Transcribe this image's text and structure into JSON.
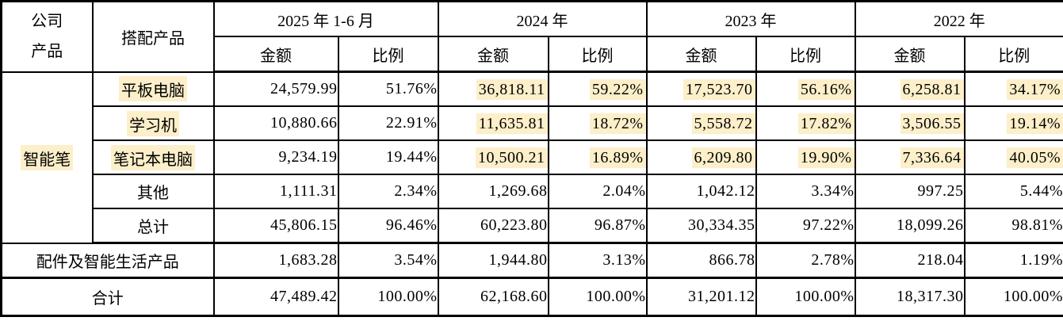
{
  "table": {
    "header": {
      "company_product_lines": [
        "公司",
        "产品"
      ],
      "paired_product": "搭配产品",
      "periods": [
        "2025 年 1-6 月",
        "2024 年",
        "2023 年",
        "2022 年"
      ],
      "amount": "金额",
      "ratio": "比例"
    },
    "company_product_cell": {
      "label": "智能笔",
      "highlight": true,
      "rowspan": 5
    },
    "rows": [
      {
        "label": "平板电脑",
        "label_highlight": true,
        "bold": false,
        "span2": false,
        "values": [
          "24,579.99",
          "51.76%",
          "36,818.11",
          "59.22%",
          "17,523.70",
          "56.16%",
          "6,258.81",
          "34.17%"
        ],
        "highlights": [
          false,
          false,
          true,
          true,
          true,
          true,
          true,
          true
        ]
      },
      {
        "label": "学习机",
        "label_highlight": true,
        "bold": false,
        "span2": false,
        "values": [
          "10,880.66",
          "22.91%",
          "11,635.81",
          "18.72%",
          "5,558.72",
          "17.82%",
          "3,506.55",
          "19.14%"
        ],
        "highlights": [
          false,
          false,
          true,
          true,
          true,
          true,
          true,
          true
        ]
      },
      {
        "label": "笔记本电脑",
        "label_highlight": true,
        "bold": false,
        "span2": false,
        "values": [
          "9,234.19",
          "19.44%",
          "10,500.21",
          "16.89%",
          "6,209.80",
          "19.90%",
          "7,336.64",
          "40.05%"
        ],
        "highlights": [
          false,
          false,
          true,
          true,
          true,
          true,
          true,
          true
        ]
      },
      {
        "label": "其他",
        "label_highlight": false,
        "bold": false,
        "span2": false,
        "values": [
          "1,111.31",
          "2.34%",
          "1,269.68",
          "2.04%",
          "1,042.12",
          "3.34%",
          "997.25",
          "5.44%"
        ],
        "highlights": [
          false,
          false,
          false,
          false,
          false,
          false,
          false,
          false
        ]
      },
      {
        "label": "总计",
        "label_highlight": false,
        "bold": true,
        "span2": false,
        "subtotal": true,
        "values": [
          "45,806.15",
          "96.46%",
          "60,223.80",
          "96.87%",
          "30,334.35",
          "97.22%",
          "18,099.26",
          "98.81%"
        ],
        "highlights": [
          false,
          false,
          false,
          false,
          false,
          false,
          false,
          false
        ]
      },
      {
        "label": "配件及智能生活产品",
        "label_highlight": false,
        "bold": false,
        "span2": true,
        "values": [
          "1,683.28",
          "3.54%",
          "1,944.80",
          "3.13%",
          "866.78",
          "2.78%",
          "218.04",
          "1.19%"
        ],
        "highlights": [
          false,
          false,
          false,
          false,
          false,
          false,
          false,
          false
        ]
      },
      {
        "label": "合计",
        "label_highlight": false,
        "bold": true,
        "span2": true,
        "grand_total": true,
        "values": [
          "47,489.42",
          "100.00%",
          "62,168.60",
          "100.00%",
          "31,201.12",
          "100.00%",
          "18,317.30",
          "100.00%"
        ],
        "highlights": [
          false,
          false,
          false,
          false,
          false,
          false,
          false,
          false
        ]
      }
    ]
  },
  "colors": {
    "highlight": "#FCEFC9",
    "border": "#000000",
    "background": "#FFFFFF"
  }
}
